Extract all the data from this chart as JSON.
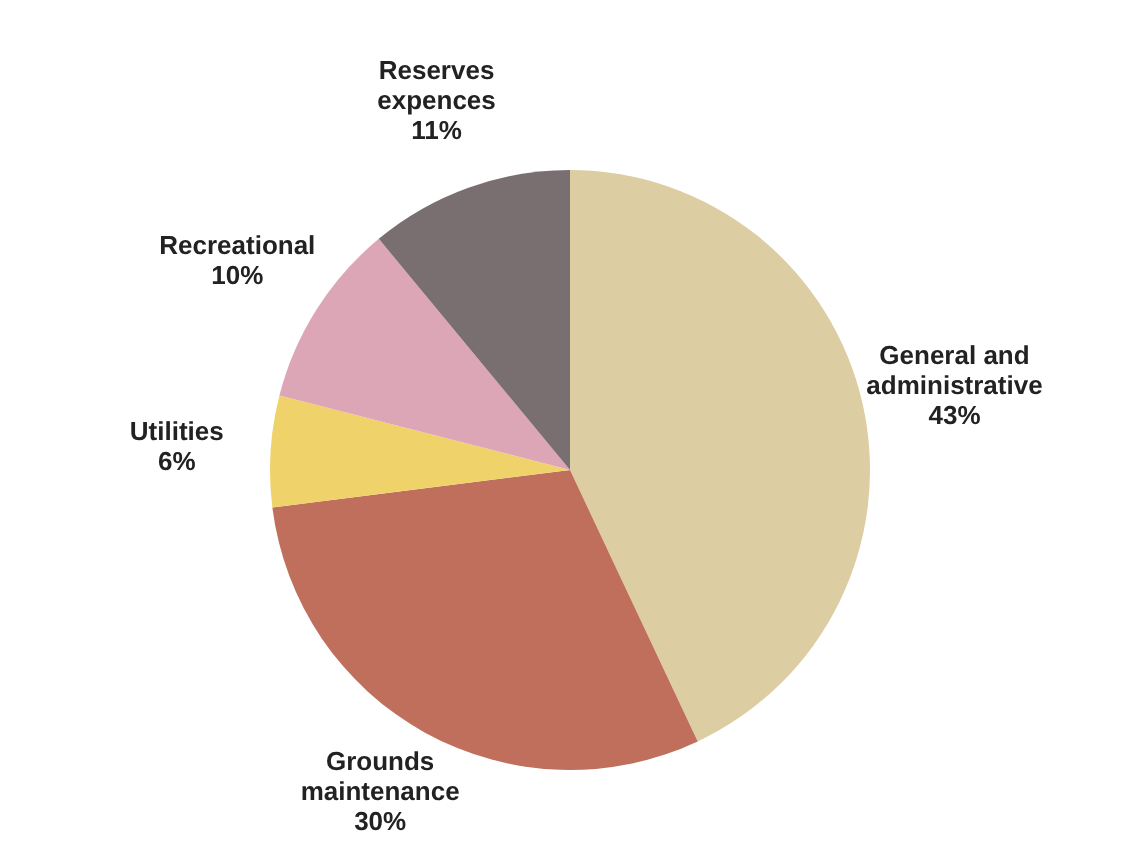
{
  "chart_data": {
    "type": "pie",
    "categories": [
      "General and administrative",
      "Grounds maintenance",
      "Utilities",
      "Recreational",
      "Reserves expences"
    ],
    "values": [
      43,
      30,
      6,
      10,
      11
    ],
    "colors": [
      "#dccda3",
      "#bf6f5c",
      "#efd36a",
      "#dca6b6",
      "#7a6f70"
    ],
    "value_labels": [
      "43%",
      "30%",
      "6%",
      "10%",
      "11%"
    ],
    "legend": false
  }
}
